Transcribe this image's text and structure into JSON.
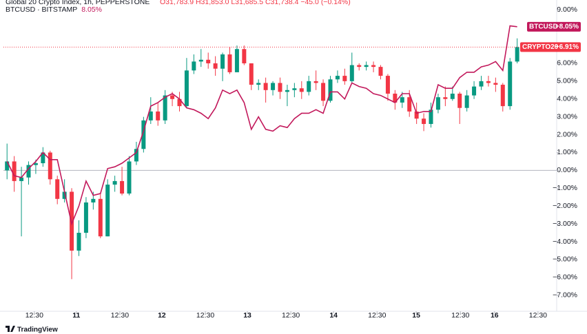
{
  "chart_data": {
    "type": "candlestick",
    "title": "Global 20 Crypto Index, 1h, PEPPERSTONE",
    "ohlc_text": "O31,783.9 H31,853.0 L31,685.5 C31,738.4 −45.0 (−0.14%)",
    "candle_tag": "CRYPTO20",
    "candle_tag_label": "+6.91%",
    "up_color": "#089981",
    "down_color": "#f23645",
    "x": [
      1,
      3,
      5,
      7,
      9,
      11,
      13,
      15,
      17,
      19,
      21,
      23,
      25,
      27,
      29,
      31,
      33,
      35,
      37,
      39,
      41,
      43,
      45,
      47,
      49,
      51,
      53,
      55,
      57,
      59,
      61,
      63,
      65,
      67,
      69,
      71,
      73,
      75,
      77,
      79,
      81,
      83,
      85,
      87,
      89,
      91,
      93,
      95,
      97,
      99,
      101,
      103,
      105,
      107,
      109,
      111,
      113,
      115,
      117,
      119,
      121,
      123,
      125,
      127,
      129,
      131,
      133,
      135,
      137,
      139,
      141,
      143
    ],
    "open": [
      0.0,
      0.5,
      -0.6,
      -0.4,
      0.3,
      0.4,
      1.0,
      -0.5,
      -1.6,
      -1.2,
      -4.5,
      -3.5,
      -1.8,
      -1.6,
      -3.7,
      -0.8,
      -0.6,
      -1.3,
      0.5,
      1.2,
      2.8,
      3.3,
      2.8,
      4.2,
      4.0,
      3.6,
      5.6,
      6.1,
      6.2,
      6.0,
      5.7,
      6.5,
      5.5,
      6.8,
      6.0,
      4.8,
      4.9,
      4.5,
      4.9,
      4.4,
      4.5,
      4.6,
      4.4,
      5.0,
      4.9,
      3.9,
      5.1,
      5.3,
      5.0,
      5.9,
      5.8,
      5.9,
      5.8,
      5.3,
      4.3,
      3.8,
      4.1,
      3.3,
      2.9,
      2.6,
      3.4,
      4.1,
      4.0,
      4.3,
      3.5,
      4.2,
      4.7,
      5.0,
      4.9,
      4.8,
      3.6,
      6.1
    ],
    "high": [
      1.5,
      0.8,
      0.2,
      0.5,
      0.6,
      1.3,
      1.1,
      -0.3,
      -0.5,
      -1.0,
      -2.8,
      -1.5,
      -1.2,
      -1.3,
      -0.5,
      -0.3,
      0.2,
      0.8,
      1.6,
      3.0,
      4.1,
      3.8,
      4.5,
      4.4,
      4.4,
      6.3,
      6.5,
      6.8,
      6.6,
      6.4,
      6.6,
      6.9,
      7.0,
      7.0,
      6.0,
      5.1,
      5.2,
      5.0,
      5.2,
      4.8,
      4.9,
      5.0,
      5.3,
      5.6,
      5.1,
      5.3,
      5.6,
      5.7,
      6.6,
      6.0,
      6.1,
      6.1,
      5.9,
      5.4,
      4.5,
      4.4,
      4.5,
      3.8,
      3.2,
      3.8,
      4.3,
      4.7,
      4.7,
      4.4,
      4.5,
      5.0,
      5.3,
      5.3,
      5.2,
      4.9,
      6.3,
      7.4
    ],
    "low": [
      -0.5,
      -1.2,
      -3.7,
      -0.8,
      -0.2,
      0.2,
      -0.8,
      -1.9,
      -1.8,
      -6.1,
      -4.8,
      -3.8,
      -2.2,
      -3.8,
      -3.7,
      -1.2,
      -1.4,
      -1.4,
      0.3,
      1.0,
      2.6,
      2.5,
      2.6,
      3.6,
      3.3,
      3.5,
      5.4,
      5.8,
      5.7,
      5.3,
      5.0,
      5.4,
      5.5,
      5.9,
      4.5,
      4.5,
      3.8,
      4.2,
      4.0,
      3.6,
      4.1,
      4.0,
      4.2,
      4.5,
      3.6,
      3.8,
      4.9,
      4.8,
      4.9,
      5.6,
      5.6,
      5.5,
      5.1,
      3.9,
      3.4,
      3.5,
      3.0,
      2.6,
      2.2,
      2.4,
      3.2,
      3.6,
      3.9,
      2.6,
      3.3,
      4.0,
      4.5,
      4.7,
      4.4,
      3.3,
      3.4,
      6.0
    ],
    "close": [
      0.5,
      -0.6,
      -0.4,
      0.3,
      0.4,
      1.0,
      -0.5,
      -1.6,
      -1.2,
      -4.5,
      -3.5,
      -1.8,
      -1.6,
      -3.7,
      -0.8,
      -0.6,
      -1.3,
      0.5,
      1.2,
      2.8,
      3.3,
      2.8,
      4.2,
      4.0,
      3.6,
      5.6,
      6.1,
      6.2,
      6.0,
      5.7,
      6.5,
      5.5,
      6.8,
      6.0,
      4.8,
      4.9,
      4.5,
      4.9,
      4.4,
      4.5,
      4.6,
      4.4,
      5.0,
      4.9,
      3.9,
      5.1,
      5.3,
      5.0,
      5.9,
      5.8,
      5.9,
      5.8,
      5.3,
      4.3,
      3.8,
      4.1,
      3.3,
      2.9,
      2.6,
      3.4,
      4.1,
      4.0,
      4.3,
      3.5,
      4.2,
      4.7,
      5.0,
      4.9,
      4.8,
      3.6,
      6.1,
      6.91
    ],
    "series": [
      {
        "name": "BTCUSD · BITSTAMP",
        "tag": "BTCUSD",
        "color": "#c2185b",
        "value_label": "8.05%",
        "tag_label": "+8.05%",
        "values": [
          0.5,
          -0.3,
          -0.4,
          0.1,
          0.5,
          1.0,
          0.6,
          0.6,
          -1.2,
          -3.0,
          -2.0,
          -0.6,
          -1.4,
          -1.3,
          0.1,
          0.2,
          0.4,
          0.7,
          1.0,
          2.2,
          3.6,
          3.8,
          4.1,
          4.3,
          4.0,
          3.5,
          3.4,
          3.2,
          2.9,
          3.5,
          4.5,
          4.3,
          4.5,
          3.8,
          2.3,
          3.0,
          2.3,
          2.2,
          2.5,
          2.4,
          2.9,
          3.2,
          3.2,
          3.4,
          3.2,
          4.4,
          4.4,
          4.0,
          4.9,
          4.7,
          4.6,
          4.3,
          4.2,
          4.0,
          3.8,
          4.3,
          4.3,
          3.2,
          3.3,
          3.3,
          4.8,
          4.6,
          4.6,
          5.2,
          5.5,
          5.5,
          5.8,
          5.9,
          6.1,
          5.6,
          8.1,
          8.05
        ]
      }
    ],
    "xlim": [
      0,
      154
    ],
    "xticks": [
      {
        "value": 8.6,
        "label": "12:30"
      },
      {
        "value": 20.3,
        "label": "11"
      },
      {
        "value": 32.4,
        "label": "12:30"
      },
      {
        "value": 44.1,
        "label": "12"
      },
      {
        "value": 56.2,
        "label": "12:30"
      },
      {
        "value": 67.9,
        "label": "13"
      },
      {
        "value": 80.0,
        "label": "12:30"
      },
      {
        "value": 91.9,
        "label": "14"
      },
      {
        "value": 104.0,
        "label": "12:30"
      },
      {
        "value": 114.9,
        "label": "15"
      },
      {
        "value": 127.2,
        "label": "12:30"
      },
      {
        "value": 136.7,
        "label": "16"
      },
      {
        "value": 148.8,
        "label": "12:30"
      }
    ],
    "ylim": [
      -7.9,
      9.55
    ],
    "yticks": [
      {
        "value": 9,
        "label": "9.00%"
      },
      {
        "value": 8,
        "label": "8.00%"
      },
      {
        "value": 7,
        "label": "7.00%"
      },
      {
        "value": 6,
        "label": "6.00%"
      },
      {
        "value": 5,
        "label": "5.00%"
      },
      {
        "value": 4,
        "label": "4.00%"
      },
      {
        "value": 3,
        "label": "3.00%"
      },
      {
        "value": 2,
        "label": "2.00%"
      },
      {
        "value": 1,
        "label": "1.00%"
      },
      {
        "value": 0,
        "label": "0.00%"
      },
      {
        "value": -1,
        "label": "−1.00%"
      },
      {
        "value": -2,
        "label": "−2.00%"
      },
      {
        "value": -3,
        "label": "−3.00%"
      },
      {
        "value": -4,
        "label": "−4.00%"
      },
      {
        "value": -5,
        "label": "−5.00%"
      },
      {
        "value": -6,
        "label": "−6.00%"
      },
      {
        "value": -7,
        "label": "−7.00%"
      }
    ],
    "zero_line": true,
    "watermark": "TradingView"
  }
}
